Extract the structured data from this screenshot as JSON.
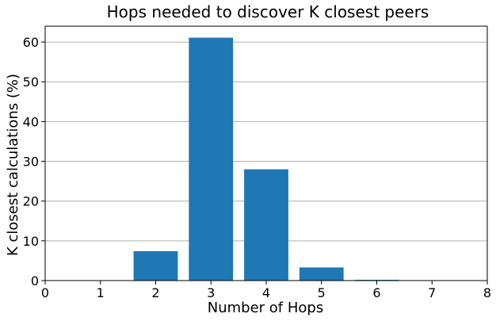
{
  "chart_data": {
    "type": "bar",
    "title": "Hops needed to discover K closest peers",
    "xlabel": "Number of Hops",
    "ylabel": "K closest calculations (%)",
    "x": [
      1,
      2,
      3,
      4,
      5,
      6,
      7
    ],
    "values": [
      0,
      7.4,
      61.1,
      28.0,
      3.3,
      0.2,
      0
    ],
    "xlim": [
      0,
      8
    ],
    "ylim": [
      0,
      64
    ],
    "xticks": [
      0,
      1,
      2,
      3,
      4,
      5,
      6,
      7,
      8
    ],
    "yticks": [
      0,
      10,
      20,
      30,
      40,
      50,
      60
    ],
    "grid": "y",
    "bar_color": "#1f77b4"
  }
}
